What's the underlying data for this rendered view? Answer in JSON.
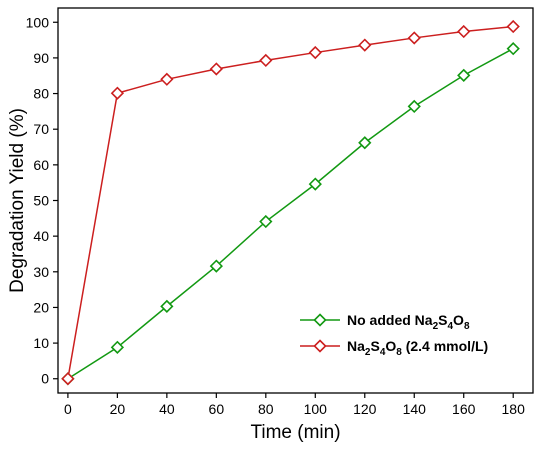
{
  "chart_data": {
    "type": "line",
    "xlabel": "Time (min)",
    "ylabel": "Degradation Yield (%)",
    "x": [
      0,
      20,
      40,
      60,
      80,
      100,
      120,
      140,
      160,
      180
    ],
    "xlim": [
      -4,
      188
    ],
    "ylim": [
      -4,
      104
    ],
    "xticks": [
      "0",
      "20",
      "40",
      "60",
      "80",
      "100",
      "120",
      "140",
      "160",
      "180"
    ],
    "yticks": [
      "0",
      "10",
      "20",
      "30",
      "40",
      "50",
      "60",
      "70",
      "80",
      "90",
      "100"
    ],
    "grid": false,
    "legend_position": "bottom-right",
    "series": [
      {
        "name_parts": {
          "a": "No added Na",
          "b": "2",
          "c": "S",
          "d": "4",
          "e": "O",
          "f": "8",
          "g": ""
        },
        "color": "#129912",
        "marker": "diamond-open",
        "values": [
          0,
          8.8,
          20.3,
          31.6,
          44.1,
          54.6,
          66.2,
          76.4,
          85.1,
          92.6
        ]
      },
      {
        "name_parts": {
          "a": "Na",
          "b": "2",
          "c": "S",
          "d": "4",
          "e": "O",
          "f": "8",
          "g": " (2.4 mmol/L)"
        },
        "color": "#cc1f1f",
        "marker": "diamond-open",
        "values": [
          0,
          80.1,
          84.0,
          86.9,
          89.3,
          91.5,
          93.6,
          95.6,
          97.4,
          98.8
        ]
      }
    ]
  }
}
